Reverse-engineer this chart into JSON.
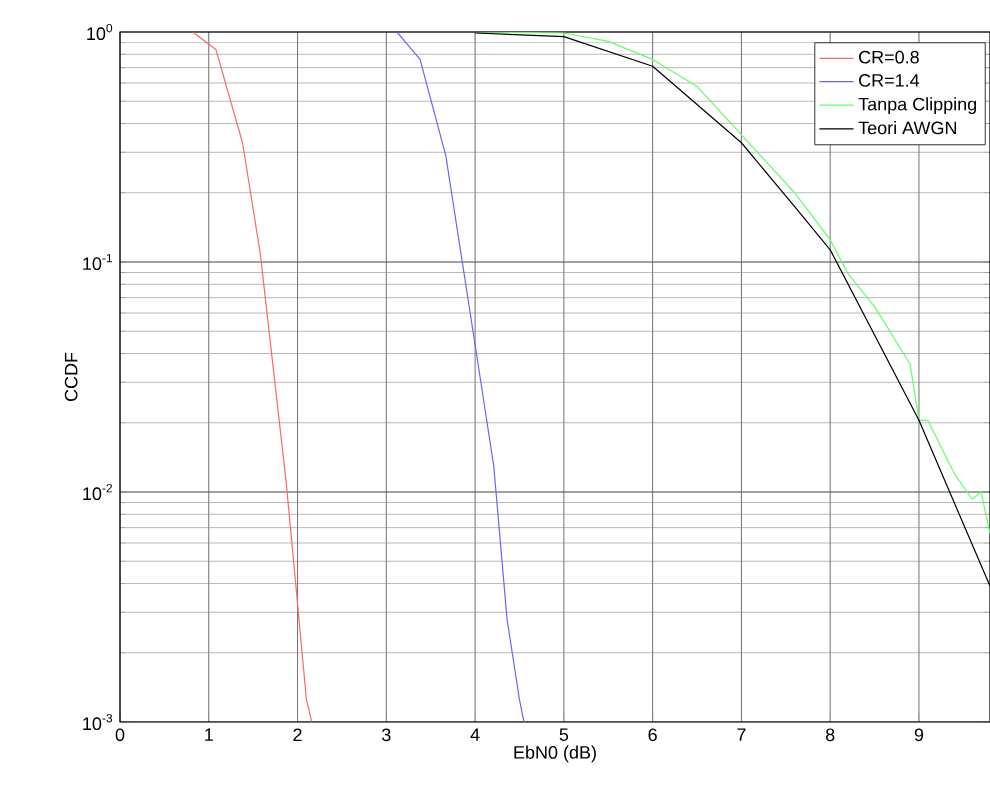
{
  "chart_data": {
    "type": "line",
    "xlabel": "EbN0 (dB)",
    "ylabel": "CCDF",
    "log": "y",
    "grid": true,
    "legend": "top right",
    "xlim": [
      0,
      9.8
    ],
    "xticks": [
      0,
      1,
      2,
      3,
      4,
      5,
      6,
      7,
      8,
      9
    ],
    "ylim": [
      0.001,
      1
    ],
    "yticks": [
      {
        "value": 0.001,
        "label": "10$^{-3}$"
      },
      {
        "value": 0.01,
        "label": "10$^{-2}$"
      },
      {
        "value": 0.1,
        "label": "10$^{-1}$"
      },
      {
        "value": 1,
        "label": "10$^{0}$"
      }
    ],
    "series": [
      {
        "name": "CR=0.8",
        "color": "#ff6666",
        "x": [
          0.82,
          1.08,
          1.38,
          1.58,
          1.87,
          1.96,
          2.1,
          2.16
        ],
        "values": [
          1,
          0.84,
          0.33,
          0.109,
          0.0112,
          0.0048,
          0.00125,
          0.001
        ]
      },
      {
        "name": "CR=1.4",
        "color": "#6666ff",
        "x": [
          3.12,
          3.38,
          3.67,
          3.98,
          4.21,
          4.36,
          4.5,
          4.55
        ],
        "values": [
          1,
          0.76,
          0.29,
          0.049,
          0.013,
          0.0028,
          0.00125,
          0.001
        ]
      },
      {
        "name": "Tanpa Clipping",
        "color": "#66ff66",
        "x": [
          4,
          5,
          5.5,
          6,
          6.5,
          7.6,
          8,
          8.2,
          8.5,
          8.9,
          9,
          9.1,
          9.4,
          9.6,
          9.7,
          9.8
        ],
        "values": [
          1,
          0.99,
          0.91,
          0.76,
          0.58,
          0.2,
          0.125,
          0.089,
          0.064,
          0.036,
          0.0205,
          0.0205,
          0.012,
          0.0093,
          0.01,
          0.0066
        ]
      },
      {
        "name": "Teori AWGN",
        "color": "#000000",
        "x": [
          4,
          5,
          6,
          7,
          7.6,
          8,
          9,
          9.8
        ],
        "values": [
          0.99,
          0.955,
          0.71,
          0.33,
          0.174,
          0.113,
          0.0205,
          0.0039
        ]
      }
    ]
  }
}
